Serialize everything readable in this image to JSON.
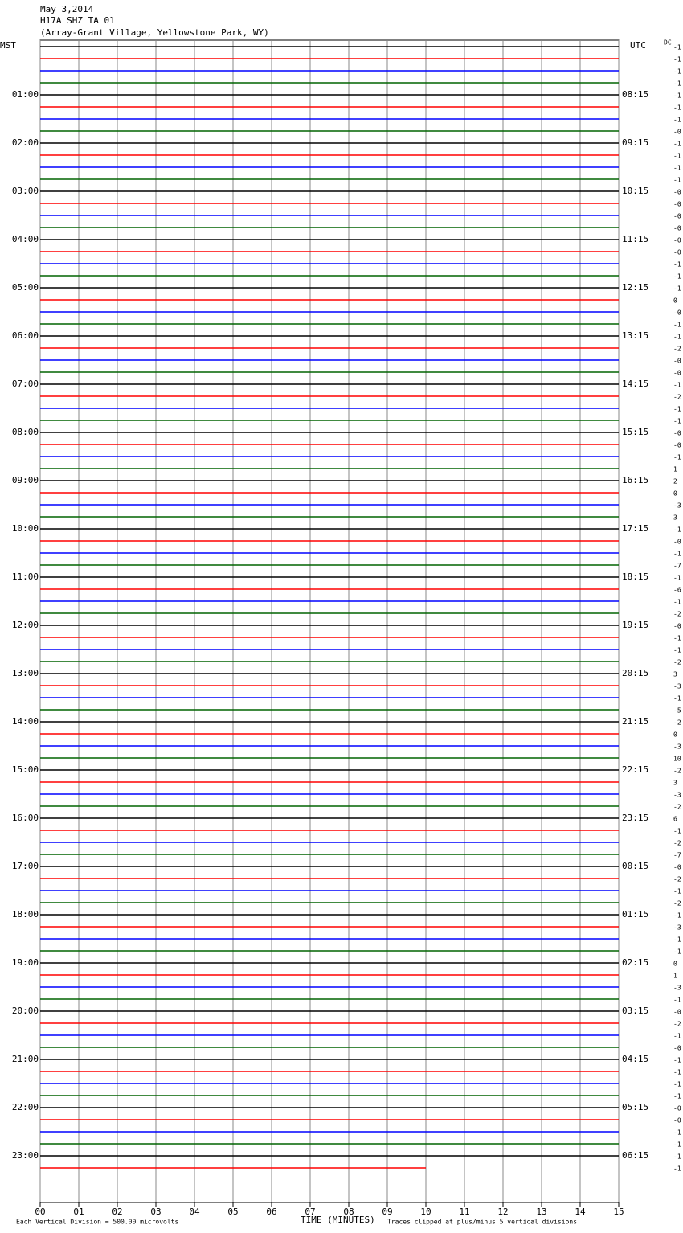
{
  "header": {
    "date": "May 3,2014",
    "station": "H17A SHZ TA 01",
    "location": "(Array-Grant Village, Yellowstone Park, WY)"
  },
  "left_label": "MST",
  "right_label": "UTC",
  "dc_label": "DC",
  "trace_colors": [
    "#000000",
    "#ff0000",
    "#0000ff",
    "#006400"
  ],
  "mst_hours": [
    "01:00",
    "02:00",
    "03:00",
    "04:00",
    "05:00",
    "06:00",
    "07:00",
    "08:00",
    "09:00",
    "10:00",
    "11:00",
    "12:00",
    "13:00",
    "14:00",
    "15:00",
    "16:00",
    "17:00",
    "18:00",
    "19:00",
    "20:00",
    "21:00",
    "22:00",
    "23:00"
  ],
  "utc_hours": [
    "08:15",
    "09:15",
    "10:15",
    "11:15",
    "12:15",
    "13:15",
    "14:15",
    "15:15",
    "16:15",
    "17:15",
    "18:15",
    "19:15",
    "20:15",
    "21:15",
    "22:15",
    "23:15",
    "00:15",
    "01:15",
    "02:15",
    "03:15",
    "04:15",
    "05:15",
    "06:15"
  ],
  "dc_offsets": [
    "-1",
    "-1",
    "-1",
    "-1",
    "-1",
    "-1",
    "-1",
    "-0",
    "-1",
    "-1",
    "-1",
    "-1",
    "-0",
    "-0",
    "-0",
    "-0",
    "-0",
    "-0",
    "-1",
    "-1",
    "-1",
    "0",
    "-0",
    "-1",
    "-1",
    "-2",
    "-0",
    "-0",
    "-1",
    "-2",
    "-1",
    "-1",
    "-0",
    "-0",
    "-1",
    "1",
    "2",
    "0",
    "-3",
    "3",
    "-1",
    "-0",
    "-1",
    "-7",
    "-1",
    "-6",
    "-1",
    "-2",
    "-0",
    "-1",
    "-1",
    "-2",
    "3",
    "-3",
    "-1",
    "-5",
    "-2",
    "0",
    "-3",
    "10",
    "-2",
    "3",
    "-3",
    "-2",
    "6",
    "-1",
    "-2",
    "-7",
    "-0",
    "-2",
    "-1",
    "-2",
    "-1",
    "-3",
    "-1",
    "-1",
    "0",
    "1",
    "-3",
    "-1",
    "-0",
    "-2",
    "-1",
    "-0",
    "-1",
    "-1",
    "-1",
    "-1",
    "-0",
    "-0",
    "-1",
    "-1",
    "-1",
    "-1"
  ],
  "x_axis": {
    "title": "TIME (MINUTES)",
    "xlim": [
      0,
      15
    ],
    "trace_end": 10,
    "ticks": [
      {
        "value": 0,
        "label": "00"
      },
      {
        "value": 1,
        "label": "01"
      },
      {
        "value": 2,
        "label": "02"
      },
      {
        "value": 3,
        "label": "03"
      },
      {
        "value": 4,
        "label": "04"
      },
      {
        "value": 5,
        "label": "05"
      },
      {
        "value": 6,
        "label": "06"
      },
      {
        "value": 7,
        "label": "07"
      },
      {
        "value": 8,
        "label": "08"
      },
      {
        "value": 9,
        "label": "09"
      },
      {
        "value": 10,
        "label": "10"
      },
      {
        "value": 11,
        "label": "11"
      },
      {
        "value": 12,
        "label": "12"
      },
      {
        "value": 13,
        "label": "13"
      },
      {
        "value": 14,
        "label": "14"
      },
      {
        "value": 15,
        "label": "15"
      }
    ]
  },
  "footer": {
    "scale": "Each Vertical Division =  500.00 microvolts",
    "clip": "Traces clipped at plus/minus 5 vertical divisions"
  }
}
